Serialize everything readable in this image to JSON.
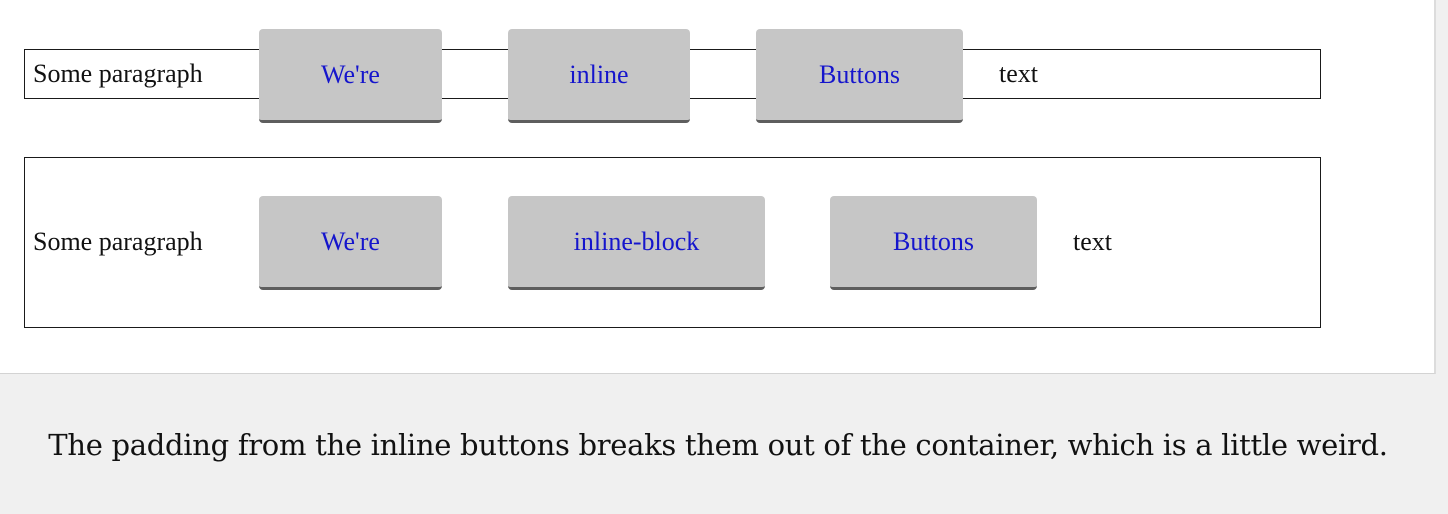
{
  "inline_example": {
    "lead": "Some paragraph",
    "buttons": [
      "We're",
      "inline",
      "Buttons"
    ],
    "tail": "text"
  },
  "inline_block_example": {
    "lead": "Some paragraph",
    "buttons": [
      "We're",
      "inline-block",
      "Buttons"
    ],
    "tail": "text"
  },
  "caption": "The padding from the inline buttons breaks them out of the container, which is a little weird.",
  "colors": {
    "button_background": "#c6c6c6",
    "button_text": "#1515cc",
    "button_shadow": "#5e5e5e",
    "caption_background": "#f0f0f0"
  }
}
